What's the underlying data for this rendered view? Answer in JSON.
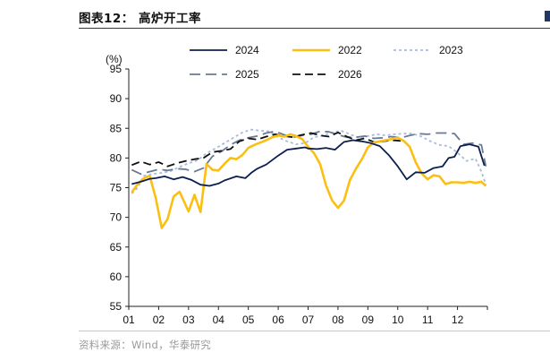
{
  "header": {
    "figure_title": "图表12：  高炉开工率"
  },
  "footer": {
    "source": "资料来源：Wind，华泰研究"
  },
  "chart_data": {
    "type": "line",
    "title": "",
    "xlabel": "",
    "ylabel": "(%)",
    "ylim": [
      55,
      95
    ],
    "yticks": [
      55,
      60,
      65,
      70,
      75,
      80,
      85,
      90,
      95
    ],
    "xlim": [
      0,
      12
    ],
    "xtick_labels": [
      "01",
      "02",
      "03",
      "04",
      "05",
      "06",
      "07",
      "08",
      "09",
      "10",
      "11",
      "12"
    ],
    "grid": false,
    "legend_position": "top",
    "series": [
      {
        "name": "2024",
        "color": "#0b1f4e",
        "dash": "solid",
        "x": [
          0.1,
          0.4,
          0.7,
          0.9,
          1.2,
          1.5,
          1.8,
          2.1,
          2.4,
          2.7,
          3.0,
          3.2,
          3.6,
          3.9,
          4.1,
          4.3,
          4.6,
          5.0,
          5.3,
          5.6,
          5.9,
          6.0,
          6.3,
          6.6,
          6.9,
          7.2,
          7.5,
          7.8,
          8.1,
          8.4,
          8.7,
          9.0,
          9.3,
          9.6,
          9.9,
          10.2,
          10.5,
          10.7,
          10.9,
          11.1,
          11.4,
          11.7,
          11.9
        ],
        "y": [
          75.6,
          76.0,
          76.5,
          76.6,
          76.9,
          76.4,
          76.8,
          76.3,
          75.5,
          75.3,
          75.7,
          76.2,
          76.9,
          76.6,
          77.5,
          78.2,
          78.9,
          80.4,
          81.4,
          81.6,
          81.8,
          81.6,
          81.5,
          81.7,
          81.4,
          82.7,
          83.0,
          82.8,
          82.5,
          82.0,
          80.5,
          78.6,
          76.4,
          77.6,
          77.5,
          78.3,
          78.6,
          80.0,
          80.2,
          82.0,
          82.3,
          81.9,
          78.7
        ]
      },
      {
        "name": "2022",
        "color": "#fbbf12",
        "dash": "solid",
        "x": [
          0.1,
          0.3,
          0.5,
          0.7,
          0.9,
          1.1,
          1.3,
          1.5,
          1.7,
          2.0,
          2.2,
          2.4,
          2.6,
          2.8,
          3.0,
          3.2,
          3.4,
          3.6,
          3.8,
          4.0,
          4.2,
          4.4,
          4.6,
          4.8,
          5.0,
          5.2,
          5.4,
          5.6,
          5.8,
          6.0,
          6.2,
          6.4,
          6.6,
          6.8,
          7.0,
          7.2,
          7.4,
          7.6,
          7.8,
          8.0,
          8.2,
          8.4,
          8.6,
          8.8,
          9.0,
          9.2,
          9.4,
          9.6,
          9.8,
          10.0,
          10.2,
          10.4,
          10.6,
          10.8,
          11.0,
          11.2,
          11.4,
          11.6,
          11.8,
          11.95
        ],
        "y": [
          74.2,
          75.6,
          76.6,
          77.0,
          73.3,
          68.2,
          69.7,
          73.5,
          74.3,
          71.0,
          73.8,
          70.9,
          79.0,
          78.0,
          77.9,
          79.0,
          80.0,
          79.8,
          80.5,
          81.7,
          82.2,
          82.6,
          83.0,
          83.5,
          83.8,
          83.6,
          84.0,
          83.7,
          83.2,
          81.9,
          80.8,
          79.0,
          75.4,
          72.9,
          71.6,
          72.8,
          76.3,
          78.2,
          79.8,
          81.8,
          82.6,
          82.8,
          83.0,
          83.2,
          83.4,
          82.9,
          81.9,
          79.3,
          77.4,
          76.4,
          77.1,
          76.9,
          75.6,
          75.9,
          75.9,
          75.8,
          76.0,
          75.8,
          76.0,
          75.3
        ]
      },
      {
        "name": "2023",
        "color": "#a9bbdd",
        "dash": "3,3",
        "x": [
          0.1,
          0.3,
          0.5,
          0.8,
          1.1,
          1.4,
          1.7,
          2.0,
          2.3,
          2.6,
          2.9,
          3.2,
          3.5,
          3.8,
          4.1,
          4.4,
          4.7,
          5.0,
          5.3,
          5.6,
          5.9,
          6.2,
          6.5,
          6.8,
          7.1,
          7.4,
          7.7,
          8.0,
          8.3,
          8.6,
          8.9,
          9.2,
          9.5,
          9.8,
          10.1,
          10.4,
          10.7,
          11.0,
          11.3,
          11.6,
          11.8,
          11.95
        ],
        "y": [
          74.0,
          75.0,
          77.0,
          77.3,
          77.5,
          77.8,
          78.5,
          79.1,
          79.6,
          80.8,
          81.6,
          82.5,
          83.4,
          84.3,
          84.8,
          84.6,
          84.5,
          83.5,
          82.8,
          82.3,
          82.5,
          83.5,
          83.8,
          84.3,
          84.6,
          84.0,
          83.4,
          83.7,
          84.0,
          83.8,
          84.0,
          84.1,
          84.1,
          83.6,
          82.8,
          82.2,
          82.0,
          80.9,
          79.5,
          79.9,
          77.7,
          75.5
        ]
      },
      {
        "name": "2025",
        "color": "#6b7a93",
        "dash": "12,6",
        "x": [
          0.1,
          0.4,
          0.7,
          1.0,
          1.3,
          1.6,
          1.9,
          2.2,
          2.5,
          2.8,
          3.1,
          3.4,
          3.7,
          4.0,
          4.3,
          4.6,
          4.9,
          5.2,
          5.5,
          5.8,
          6.1,
          6.4,
          6.7,
          7.0,
          7.3,
          7.6,
          7.9,
          8.2,
          8.5,
          8.8,
          9.1,
          9.4,
          9.7,
          10.0,
          10.3,
          10.6,
          10.9,
          11.2,
          11.5,
          11.8,
          11.95
        ],
        "y": [
          78.0,
          77.3,
          77.7,
          78.1,
          77.9,
          78.2,
          78.1,
          77.7,
          78.3,
          80.3,
          81.1,
          82.2,
          83.0,
          83.4,
          83.7,
          84.2,
          84.5,
          83.9,
          83.5,
          83.8,
          84.0,
          84.5,
          84.4,
          83.9,
          83.5,
          83.5,
          83.7,
          83.3,
          83.4,
          83.6,
          83.4,
          83.8,
          84.1,
          84.0,
          84.2,
          84.2,
          84.1,
          82.3,
          82.5,
          82.2,
          78.6
        ]
      },
      {
        "name": "2026",
        "color": "#111111",
        "dash": "9,5",
        "x": [
          0.1,
          0.4,
          0.7,
          1.0,
          1.3,
          1.6,
          1.9,
          2.2,
          2.5,
          2.8,
          3.1,
          3.4,
          3.7,
          4.0,
          4.3,
          4.6,
          4.9,
          5.2,
          5.5,
          5.8,
          6.1,
          6.4,
          6.7,
          7.0,
          7.3,
          7.6,
          7.9,
          8.2,
          8.5,
          8.8,
          9.1
        ],
        "y": [
          78.8,
          79.4,
          78.9,
          79.3,
          78.6,
          79.1,
          79.5,
          79.8,
          80.0,
          81.0,
          81.2,
          81.5,
          82.8,
          83.3,
          83.1,
          83.6,
          84.0,
          83.7,
          83.5,
          83.9,
          84.2,
          83.8,
          83.6,
          84.3,
          83.6,
          83.0,
          83.3,
          82.7,
          82.8,
          83.0,
          82.9
        ]
      }
    ]
  }
}
